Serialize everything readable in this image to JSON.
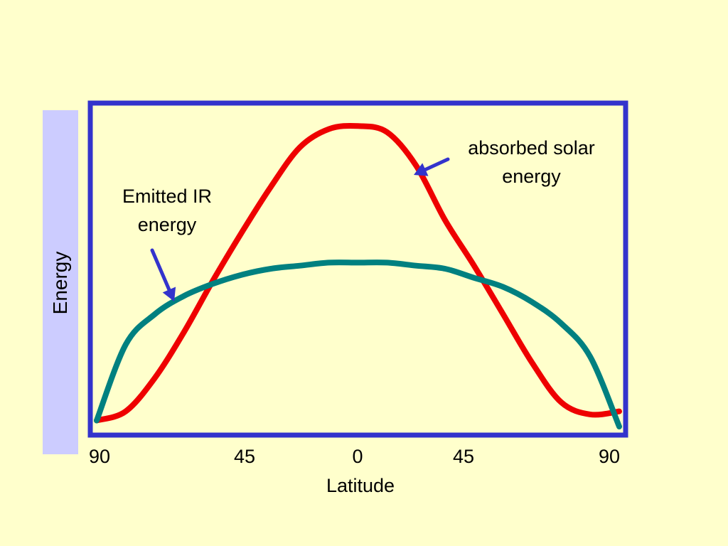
{
  "colors": {
    "background": "#ffffcc",
    "frame": "#3333cc",
    "ylabel_band": "#ccccff",
    "text": "#000000"
  },
  "chart_data": {
    "type": "line",
    "title": "",
    "xlabel": "Latitude",
    "ylabel": "Energy",
    "x_ticks": [
      "90",
      "45",
      "0",
      "45",
      "90"
    ],
    "x_tick_values": [
      -90,
      -45,
      0,
      45,
      90
    ],
    "xlim": [
      -90,
      90
    ],
    "ylim": [
      0,
      1
    ],
    "grid": false,
    "legend": "none",
    "series": [
      {
        "id": "solar",
        "color": "#ee0000",
        "x": [
          -90,
          -80,
          -70,
          -60,
          -50,
          -40,
          -30,
          -20,
          -10,
          0,
          10,
          20,
          30,
          40,
          50,
          60,
          70,
          80,
          90
        ],
        "values": [
          0.02,
          0.05,
          0.16,
          0.31,
          0.48,
          0.64,
          0.79,
          0.92,
          0.98,
          0.99,
          0.97,
          0.86,
          0.68,
          0.53,
          0.37,
          0.21,
          0.08,
          0.04,
          0.05
        ]
      },
      {
        "id": "ir",
        "color": "#008080",
        "x": [
          -90,
          -80,
          -70,
          -60,
          -50,
          -40,
          -30,
          -20,
          -10,
          0,
          10,
          20,
          30,
          40,
          50,
          60,
          70,
          80,
          90
        ],
        "values": [
          0.02,
          0.27,
          0.37,
          0.43,
          0.47,
          0.5,
          0.52,
          0.53,
          0.54,
          0.54,
          0.54,
          0.53,
          0.52,
          0.49,
          0.46,
          0.41,
          0.34,
          0.23,
          0.0
        ]
      }
    ],
    "annotations": [
      {
        "id": "solar",
        "lines": [
          "absorbed solar",
          "energy"
        ],
        "points_to": "solar"
      },
      {
        "id": "ir",
        "lines": [
          "Emitted IR",
          "energy"
        ],
        "points_to": "ir"
      }
    ]
  }
}
